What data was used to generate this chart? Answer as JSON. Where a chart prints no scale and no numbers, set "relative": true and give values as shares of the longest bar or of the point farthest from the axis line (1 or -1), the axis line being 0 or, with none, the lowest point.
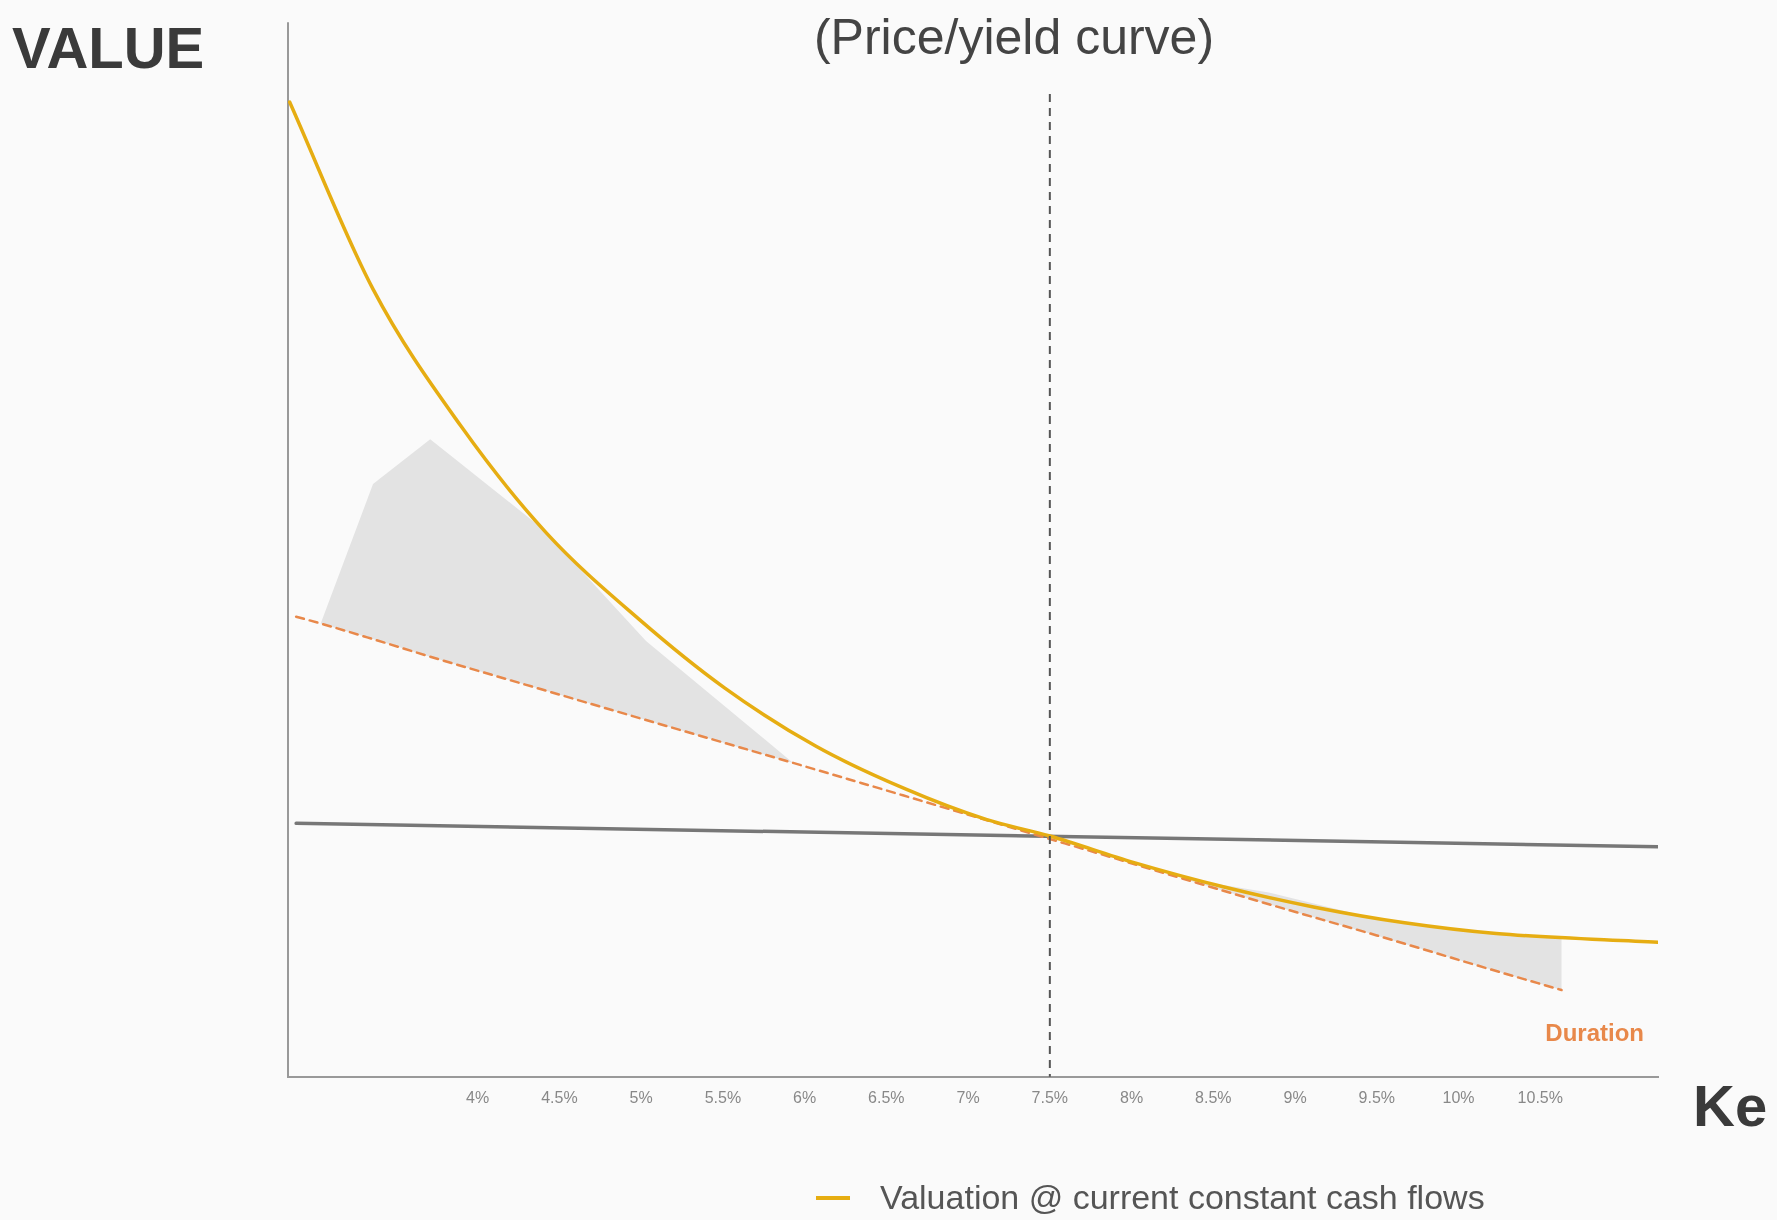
{
  "chart_data": {
    "type": "line",
    "title": "(Price/yield curve)",
    "xlabel": "Ke",
    "ylabel": "VALUE",
    "relative": true,
    "legend": "bottom",
    "grid": false,
    "tick_labels": "x",
    "xlim": [
      2.84,
      11.22
    ],
    "xticks": [
      {
        "value": 4,
        "label": "4%"
      },
      {
        "value": 4.5,
        "label": "4.5%"
      },
      {
        "value": 5,
        "label": "5%"
      },
      {
        "value": 5.5,
        "label": "5.5%"
      },
      {
        "value": 6,
        "label": "6%"
      },
      {
        "value": 6.5,
        "label": "6.5%"
      },
      {
        "value": 7,
        "label": "7%"
      },
      {
        "value": 7.5,
        "label": "7.5%"
      },
      {
        "value": 8,
        "label": "8%"
      },
      {
        "value": 8.5,
        "label": "8.5%"
      },
      {
        "value": 9,
        "label": "9%"
      },
      {
        "value": 9.5,
        "label": "9.5%"
      },
      {
        "value": 10,
        "label": "10%"
      },
      {
        "value": 10.5,
        "label": "10.5%"
      }
    ],
    "series": [
      {
        "name": "Valuation @ current constant cash flows",
        "color": "#e6ad12",
        "line_style": "solid",
        "x": [
          2.85,
          3.36,
          3.9,
          4.42,
          4.99,
          5.51,
          6.07,
          6.62,
          7.11,
          7.5,
          8.01,
          8.56,
          9.12,
          9.67,
          10.23,
          11.22
        ],
        "values": [
          1,
          0.808,
          0.667,
          0.558,
          0.469,
          0.399,
          0.339,
          0.295,
          0.264,
          0.247,
          0.22,
          0.195,
          0.174,
          0.158,
          0.147,
          0.138
        ]
      },
      {
        "color": "#e8884a",
        "line_style": "dashed",
        "x": [
          2.89,
          3.04,
          3.36,
          3.71,
          4.4,
          5.03,
          5.93,
          7.5,
          8.3,
          8.84,
          9.5,
          10.2,
          10.63
        ],
        "values": [
          0.472,
          0.465,
          0.449,
          0.431,
          0.397,
          0.366,
          0.322,
          0.244,
          0.204,
          0.177,
          0.145,
          0.11,
          0.089
        ],
        "lower": [
          null,
          0.465,
          0.449,
          0.431,
          0.397,
          0.366,
          0.322,
          null,
          0.204,
          0.177,
          0.145,
          0.11,
          0.089
        ],
        "upper": [
          null,
          0.465,
          0.608,
          0.654,
          0.562,
          0.447,
          0.322,
          null,
          0.204,
          0.189,
          0.162,
          0.147,
          0.143
        ]
      },
      {
        "color": "#777777",
        "line_style": "solid",
        "x": [
          2.89,
          11.22
        ],
        "values": [
          0.26,
          0.236
        ]
      }
    ],
    "ref_lines": [
      {
        "axis": "x",
        "value": 7.5,
        "color": "#555555",
        "line_style": "dashed"
      }
    ],
    "annotations": [
      "Duration"
    ]
  }
}
